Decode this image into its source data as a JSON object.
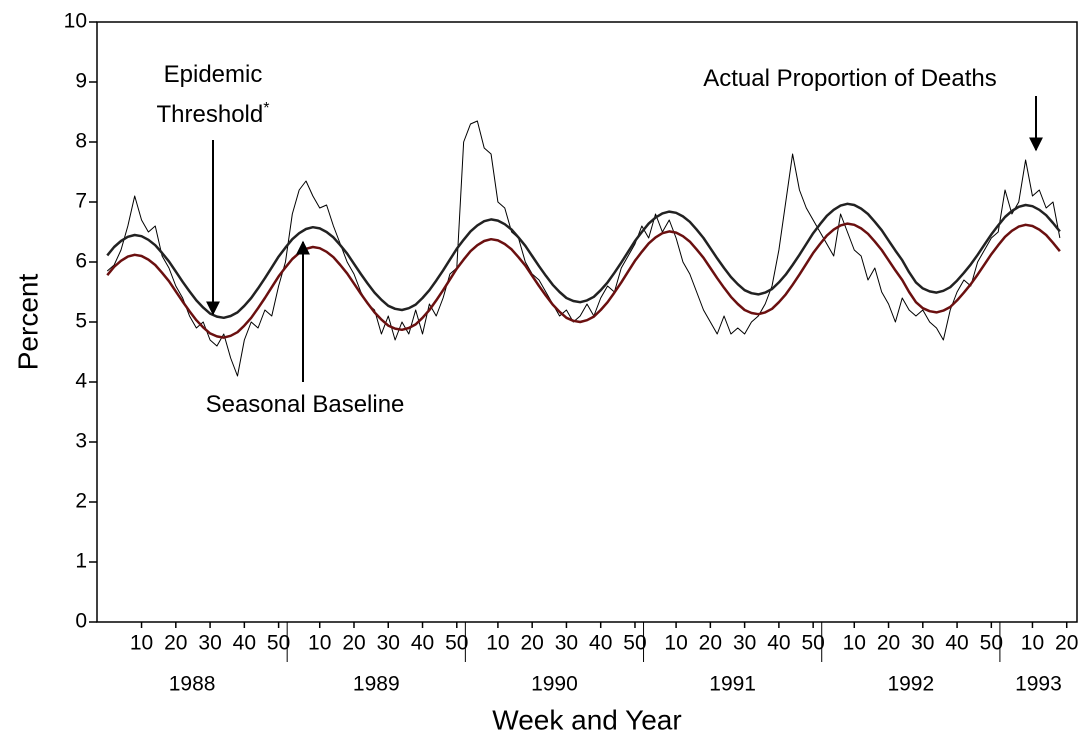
{
  "chart_data": {
    "type": "line",
    "xlabel": "Week and Year",
    "ylabel": "Percent",
    "xlim": [
      -3,
      283
    ],
    "ylim": [
      0,
      10
    ],
    "yticks": [
      0,
      1,
      2,
      3,
      4,
      5,
      6,
      7,
      8,
      9,
      10
    ],
    "xticks": [
      {
        "value": 10,
        "label": "10"
      },
      {
        "value": 20,
        "label": "20"
      },
      {
        "value": 30,
        "label": "30"
      },
      {
        "value": 40,
        "label": "40"
      },
      {
        "value": 50,
        "label": "50"
      },
      {
        "value": 62,
        "label": "10"
      },
      {
        "value": 72,
        "label": "20"
      },
      {
        "value": 82,
        "label": "30"
      },
      {
        "value": 92,
        "label": "40"
      },
      {
        "value": 102,
        "label": "50"
      },
      {
        "value": 114,
        "label": "10"
      },
      {
        "value": 124,
        "label": "20"
      },
      {
        "value": 134,
        "label": "30"
      },
      {
        "value": 144,
        "label": "40"
      },
      {
        "value": 154,
        "label": "50"
      },
      {
        "value": 166,
        "label": "10"
      },
      {
        "value": 176,
        "label": "20"
      },
      {
        "value": 186,
        "label": "30"
      },
      {
        "value": 196,
        "label": "40"
      },
      {
        "value": 206,
        "label": "50"
      },
      {
        "value": 218,
        "label": "10"
      },
      {
        "value": 228,
        "label": "20"
      },
      {
        "value": 238,
        "label": "30"
      },
      {
        "value": 248,
        "label": "40"
      },
      {
        "value": 258,
        "label": "50"
      },
      {
        "value": 270,
        "label": "10"
      },
      {
        "value": 280,
        "label": "20"
      }
    ],
    "x_groups": [
      {
        "label": "1988",
        "range": [
          -3,
          52.5
        ]
      },
      {
        "label": "1989",
        "range": [
          52.5,
          104.5
        ]
      },
      {
        "label": "1990",
        "range": [
          104.5,
          156.5
        ]
      },
      {
        "label": "1991",
        "range": [
          156.5,
          208.5
        ]
      },
      {
        "label": "1992",
        "range": [
          208.5,
          260.5
        ]
      },
      {
        "label": "1993",
        "range": [
          260.5,
          283
        ]
      }
    ],
    "threshold_marker": "*",
    "x": [
      0,
      2,
      4,
      6,
      8,
      10,
      12,
      14,
      16,
      18,
      20,
      22,
      24,
      26,
      28,
      30,
      32,
      34,
      36,
      38,
      40,
      42,
      44,
      46,
      48,
      50,
      52,
      54,
      56,
      58,
      60,
      62,
      64,
      66,
      68,
      70,
      72,
      74,
      76,
      78,
      80,
      82,
      84,
      86,
      88,
      90,
      92,
      94,
      96,
      98,
      100,
      102,
      104,
      106,
      108,
      110,
      112,
      114,
      116,
      118,
      120,
      122,
      124,
      126,
      128,
      130,
      132,
      134,
      136,
      138,
      140,
      142,
      144,
      146,
      148,
      150,
      152,
      154,
      156,
      158,
      160,
      162,
      164,
      166,
      168,
      170,
      172,
      174,
      176,
      178,
      180,
      182,
      184,
      186,
      188,
      190,
      192,
      194,
      196,
      198,
      200,
      202,
      204,
      206,
      208,
      210,
      212,
      214,
      216,
      218,
      220,
      222,
      224,
      226,
      228,
      230,
      232,
      234,
      236,
      238,
      240,
      242,
      244,
      246,
      248,
      250,
      252,
      254,
      256,
      258,
      260,
      262,
      264,
      266,
      268,
      270,
      272,
      274,
      276,
      278
    ],
    "series": [
      {
        "name": "Actual Proportion of Deaths",
        "color": "#000000",
        "width": 1,
        "values": [
          5.85,
          5.95,
          6.2,
          6.6,
          7.1,
          6.7,
          6.5,
          6.6,
          6.1,
          5.9,
          5.6,
          5.4,
          5.1,
          4.9,
          5.0,
          4.7,
          4.6,
          4.8,
          4.4,
          4.1,
          4.7,
          5.0,
          4.9,
          5.2,
          5.1,
          5.6,
          6.0,
          6.8,
          7.2,
          7.35,
          7.1,
          6.9,
          6.95,
          6.6,
          6.3,
          6.0,
          5.8,
          5.5,
          5.3,
          5.2,
          4.8,
          5.1,
          4.7,
          5.0,
          4.8,
          5.2,
          4.8,
          5.3,
          5.1,
          5.4,
          5.8,
          5.9,
          8.0,
          8.3,
          8.35,
          7.9,
          7.8,
          7.0,
          6.9,
          6.5,
          6.4,
          6.0,
          5.8,
          5.7,
          5.5,
          5.3,
          5.1,
          5.2,
          5.0,
          5.1,
          5.3,
          5.1,
          5.4,
          5.6,
          5.5,
          5.9,
          6.1,
          6.3,
          6.6,
          6.4,
          6.8,
          6.5,
          6.7,
          6.4,
          6.0,
          5.8,
          5.5,
          5.2,
          5.0,
          4.8,
          5.1,
          4.8,
          4.9,
          4.8,
          5.0,
          5.1,
          5.3,
          5.6,
          6.2,
          7.0,
          7.8,
          7.2,
          6.9,
          6.7,
          6.5,
          6.3,
          6.1,
          6.8,
          6.5,
          6.2,
          6.1,
          5.7,
          5.9,
          5.5,
          5.3,
          5.0,
          5.4,
          5.2,
          5.1,
          5.2,
          5.0,
          4.9,
          4.7,
          5.2,
          5.5,
          5.7,
          5.6,
          6.0,
          6.2,
          6.4,
          6.5,
          7.2,
          6.8,
          7.0,
          7.7,
          7.1,
          7.2,
          6.9,
          7.0,
          6.4
        ]
      },
      {
        "name": "Epidemic Threshold",
        "color": "#222222",
        "width": 2.5,
        "values": [
          6.11,
          6.25,
          6.35,
          6.42,
          6.45,
          6.43,
          6.37,
          6.28,
          6.15,
          6.01,
          5.84,
          5.67,
          5.51,
          5.36,
          5.24,
          5.14,
          5.09,
          5.07,
          5.1,
          5.16,
          5.27,
          5.4,
          5.56,
          5.73,
          5.91,
          6.09,
          6.24,
          6.38,
          6.48,
          6.55,
          6.58,
          6.56,
          6.5,
          6.41,
          6.28,
          6.14,
          5.97,
          5.8,
          5.64,
          5.49,
          5.37,
          5.27,
          5.22,
          5.2,
          5.23,
          5.29,
          5.4,
          5.53,
          5.69,
          5.86,
          6.04,
          6.22,
          6.37,
          6.51,
          6.61,
          6.68,
          6.71,
          6.69,
          6.63,
          6.54,
          6.41,
          6.27,
          6.1,
          5.93,
          5.77,
          5.62,
          5.5,
          5.4,
          5.35,
          5.33,
          5.36,
          5.42,
          5.53,
          5.66,
          5.82,
          5.99,
          6.17,
          6.35,
          6.5,
          6.64,
          6.74,
          6.81,
          6.84,
          6.82,
          6.76,
          6.67,
          6.54,
          6.4,
          6.23,
          6.06,
          5.9,
          5.75,
          5.63,
          5.53,
          5.48,
          5.46,
          5.49,
          5.55,
          5.66,
          5.79,
          5.95,
          6.12,
          6.3,
          6.48,
          6.63,
          6.77,
          6.87,
          6.94,
          6.97,
          6.95,
          6.89,
          6.8,
          6.67,
          6.53,
          6.36,
          6.19,
          6.03,
          5.83,
          5.66,
          5.56,
          5.51,
          5.49,
          5.52,
          5.58,
          5.69,
          5.82,
          5.96,
          6.12,
          6.29,
          6.46,
          6.61,
          6.75,
          6.85,
          6.92,
          6.95,
          6.93,
          6.87,
          6.78,
          6.65,
          6.51
        ]
      },
      {
        "name": "Seasonal Baseline",
        "color": "#6b1010",
        "width": 2.5,
        "values": [
          5.78,
          5.92,
          6.02,
          6.09,
          6.12,
          6.1,
          6.04,
          5.95,
          5.82,
          5.68,
          5.51,
          5.34,
          5.18,
          5.03,
          4.91,
          4.81,
          4.76,
          4.74,
          4.77,
          4.83,
          4.94,
          5.07,
          5.23,
          5.4,
          5.58,
          5.76,
          5.91,
          6.05,
          6.15,
          6.22,
          6.25,
          6.23,
          6.17,
          6.08,
          5.95,
          5.81,
          5.64,
          5.47,
          5.31,
          5.16,
          5.04,
          4.94,
          4.89,
          4.87,
          4.9,
          4.96,
          5.07,
          5.2,
          5.36,
          5.53,
          5.71,
          5.89,
          6.04,
          6.18,
          6.28,
          6.35,
          6.38,
          6.36,
          6.3,
          6.21,
          6.08,
          5.94,
          5.77,
          5.6,
          5.44,
          5.29,
          5.17,
          5.07,
          5.02,
          5.0,
          5.03,
          5.09,
          5.2,
          5.33,
          5.49,
          5.66,
          5.84,
          6.02,
          6.17,
          6.31,
          6.41,
          6.48,
          6.51,
          6.49,
          6.43,
          6.34,
          6.21,
          6.07,
          5.9,
          5.73,
          5.57,
          5.42,
          5.3,
          5.2,
          5.15,
          5.13,
          5.16,
          5.22,
          5.33,
          5.46,
          5.62,
          5.79,
          5.97,
          6.15,
          6.3,
          6.44,
          6.54,
          6.61,
          6.64,
          6.62,
          6.56,
          6.47,
          6.34,
          6.2,
          6.03,
          5.86,
          5.7,
          5.5,
          5.33,
          5.23,
          5.18,
          5.16,
          5.19,
          5.25,
          5.36,
          5.49,
          5.63,
          5.79,
          5.96,
          6.13,
          6.28,
          6.42,
          6.52,
          6.59,
          6.62,
          6.6,
          6.54,
          6.45,
          6.32,
          6.18
        ]
      }
    ]
  }
}
